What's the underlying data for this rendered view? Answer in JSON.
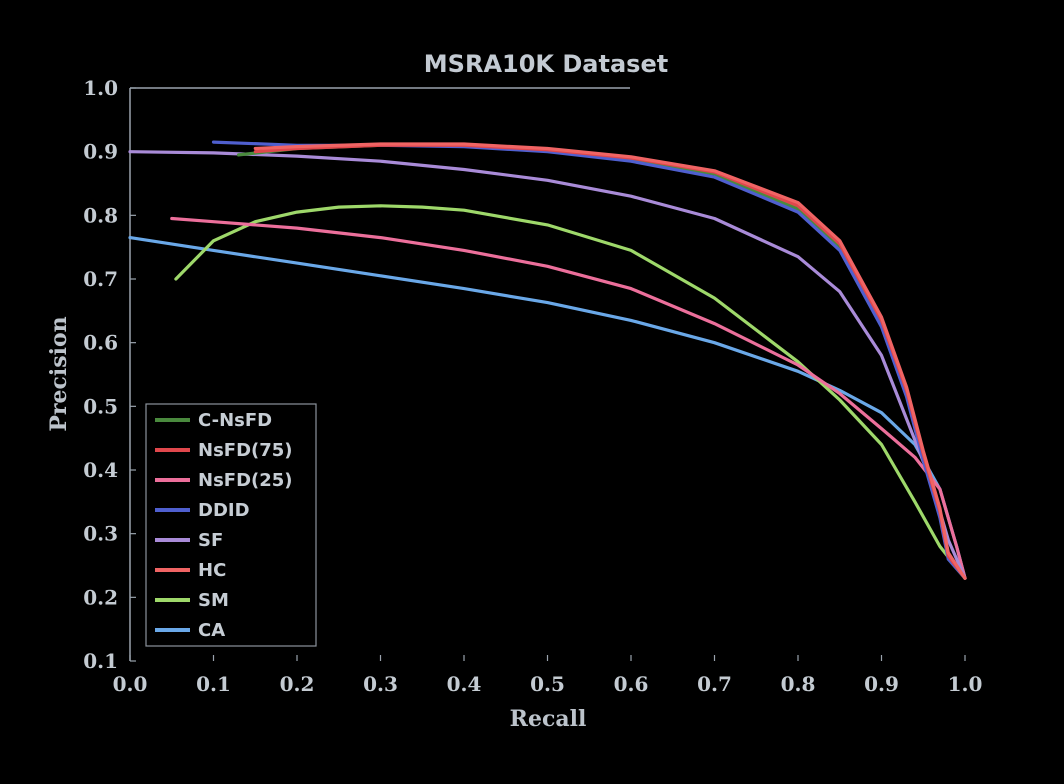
{
  "chart_data": {
    "type": "line",
    "title": "MSRA10K Dataset",
    "xlabel": "Recall",
    "ylabel": "Precision",
    "xlim": [
      0.0,
      1.0
    ],
    "ylim": [
      0.1,
      1.0
    ],
    "x_ticks": [
      "0.0",
      "0.1",
      "0.2",
      "0.3",
      "0.4",
      "0.5",
      "0.6",
      "0.7",
      "0.8",
      "0.9",
      "1.0"
    ],
    "y_ticks": [
      "0.1",
      "0.2",
      "0.3",
      "0.4",
      "0.5",
      "0.6",
      "0.7",
      "0.8",
      "0.9",
      "1.0"
    ],
    "grid": false,
    "legend_position": "bottom-left",
    "series": [
      {
        "name": "C-NsFD",
        "color": "#4a8a3e",
        "points": [
          [
            0.13,
            0.895
          ],
          [
            0.2,
            0.905
          ],
          [
            0.3,
            0.91
          ],
          [
            0.4,
            0.91
          ],
          [
            0.5,
            0.902
          ],
          [
            0.6,
            0.888
          ],
          [
            0.7,
            0.865
          ],
          [
            0.8,
            0.81
          ],
          [
            0.85,
            0.75
          ],
          [
            0.9,
            0.63
          ],
          [
            0.93,
            0.52
          ],
          [
            0.95,
            0.42
          ],
          [
            0.97,
            0.33
          ],
          [
            0.98,
            0.26
          ],
          [
            1.0,
            0.23
          ]
        ]
      },
      {
        "name": "NsFD(75)",
        "color": "#e0474c",
        "points": [
          [
            0.15,
            0.9
          ],
          [
            0.2,
            0.905
          ],
          [
            0.3,
            0.91
          ],
          [
            0.4,
            0.91
          ],
          [
            0.5,
            0.903
          ],
          [
            0.6,
            0.89
          ],
          [
            0.7,
            0.868
          ],
          [
            0.8,
            0.815
          ],
          [
            0.85,
            0.755
          ],
          [
            0.9,
            0.635
          ],
          [
            0.93,
            0.525
          ],
          [
            0.95,
            0.425
          ],
          [
            0.97,
            0.335
          ],
          [
            0.98,
            0.265
          ],
          [
            1.0,
            0.23
          ]
        ]
      },
      {
        "name": "NsFD(25)",
        "color": "#ec6f9b",
        "points": [
          [
            0.05,
            0.795
          ],
          [
            0.1,
            0.79
          ],
          [
            0.2,
            0.78
          ],
          [
            0.3,
            0.765
          ],
          [
            0.4,
            0.745
          ],
          [
            0.5,
            0.72
          ],
          [
            0.6,
            0.685
          ],
          [
            0.7,
            0.63
          ],
          [
            0.8,
            0.565
          ],
          [
            0.85,
            0.52
          ],
          [
            0.9,
            0.465
          ],
          [
            0.94,
            0.42
          ],
          [
            0.97,
            0.37
          ],
          [
            0.99,
            0.28
          ],
          [
            1.0,
            0.23
          ]
        ]
      },
      {
        "name": "DDID",
        "color": "#4f5fcf",
        "points": [
          [
            0.1,
            0.915
          ],
          [
            0.2,
            0.91
          ],
          [
            0.3,
            0.91
          ],
          [
            0.4,
            0.908
          ],
          [
            0.5,
            0.9
          ],
          [
            0.6,
            0.885
          ],
          [
            0.7,
            0.86
          ],
          [
            0.8,
            0.805
          ],
          [
            0.85,
            0.745
          ],
          [
            0.9,
            0.625
          ],
          [
            0.93,
            0.515
          ],
          [
            0.95,
            0.415
          ],
          [
            0.97,
            0.325
          ],
          [
            0.98,
            0.26
          ],
          [
            1.0,
            0.23
          ]
        ]
      },
      {
        "name": "SF",
        "color": "#a98bd8",
        "points": [
          [
            0.0,
            0.9
          ],
          [
            0.1,
            0.898
          ],
          [
            0.2,
            0.893
          ],
          [
            0.3,
            0.885
          ],
          [
            0.4,
            0.872
          ],
          [
            0.5,
            0.855
          ],
          [
            0.6,
            0.83
          ],
          [
            0.7,
            0.795
          ],
          [
            0.8,
            0.735
          ],
          [
            0.85,
            0.68
          ],
          [
            0.9,
            0.58
          ],
          [
            0.93,
            0.48
          ],
          [
            0.96,
            0.38
          ],
          [
            0.98,
            0.29
          ],
          [
            1.0,
            0.23
          ]
        ]
      },
      {
        "name": "HC",
        "color": "#f06464",
        "points": [
          [
            0.15,
            0.905
          ],
          [
            0.2,
            0.908
          ],
          [
            0.3,
            0.912
          ],
          [
            0.4,
            0.912
          ],
          [
            0.5,
            0.905
          ],
          [
            0.6,
            0.892
          ],
          [
            0.7,
            0.87
          ],
          [
            0.8,
            0.82
          ],
          [
            0.85,
            0.76
          ],
          [
            0.9,
            0.64
          ],
          [
            0.93,
            0.53
          ],
          [
            0.95,
            0.43
          ],
          [
            0.97,
            0.34
          ],
          [
            0.98,
            0.27
          ],
          [
            1.0,
            0.23
          ]
        ]
      },
      {
        "name": "SM",
        "color": "#9ed86a",
        "points": [
          [
            0.055,
            0.7
          ],
          [
            0.1,
            0.76
          ],
          [
            0.15,
            0.79
          ],
          [
            0.2,
            0.805
          ],
          [
            0.25,
            0.813
          ],
          [
            0.3,
            0.815
          ],
          [
            0.35,
            0.813
          ],
          [
            0.4,
            0.808
          ],
          [
            0.5,
            0.785
          ],
          [
            0.6,
            0.745
          ],
          [
            0.7,
            0.67
          ],
          [
            0.8,
            0.57
          ],
          [
            0.85,
            0.51
          ],
          [
            0.9,
            0.44
          ],
          [
            0.94,
            0.35
          ],
          [
            0.97,
            0.28
          ],
          [
            1.0,
            0.23
          ]
        ]
      },
      {
        "name": "CA",
        "color": "#6aa8e8",
        "points": [
          [
            0.0,
            0.765
          ],
          [
            0.1,
            0.745
          ],
          [
            0.2,
            0.725
          ],
          [
            0.3,
            0.705
          ],
          [
            0.4,
            0.685
          ],
          [
            0.5,
            0.663
          ],
          [
            0.6,
            0.635
          ],
          [
            0.7,
            0.6
          ],
          [
            0.8,
            0.555
          ],
          [
            0.85,
            0.525
          ],
          [
            0.9,
            0.49
          ],
          [
            0.94,
            0.44
          ],
          [
            0.97,
            0.37
          ],
          [
            0.99,
            0.28
          ],
          [
            1.0,
            0.23
          ]
        ]
      }
    ]
  }
}
